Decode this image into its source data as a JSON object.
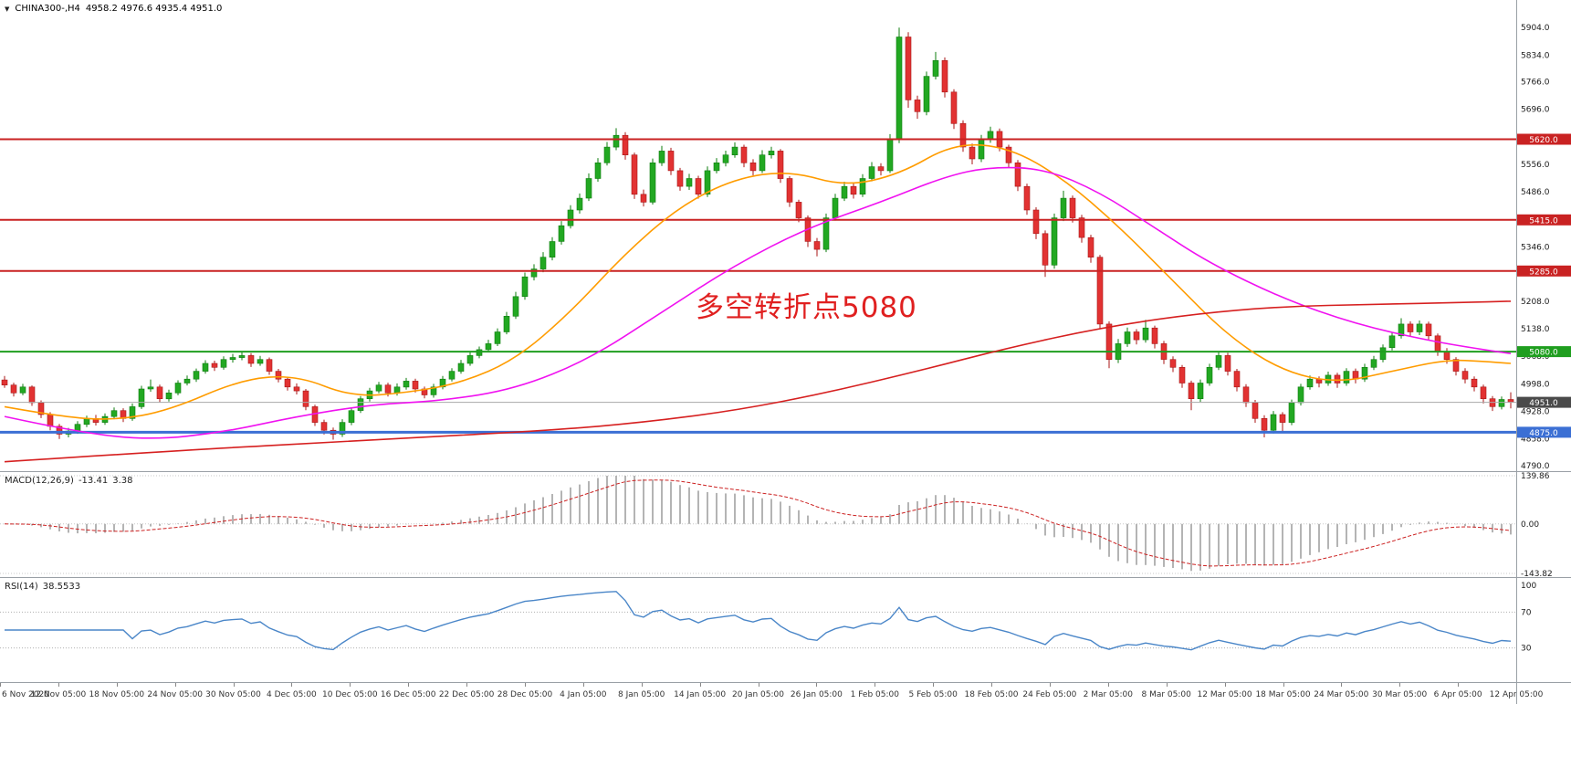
{
  "header": {
    "dropdown_icon": "▼",
    "symbol_period": "CHINA300-,H4",
    "ohlc": "4958.2 4976.6 4935.4 4951.0"
  },
  "annotation": {
    "text": "多空转折点5080",
    "color": "#e02020"
  },
  "price_axis": {
    "labels": [
      "5904.0",
      "5834.0",
      "5766.0",
      "5696.0",
      "5556.0",
      "5486.0",
      "5346.0",
      "5208.0",
      "5138.0",
      "5068.0",
      "4998.0",
      "4928.0",
      "4858.0",
      "4790.0"
    ],
    "badges": [
      {
        "label": "5620.0",
        "price": 5620.0,
        "color": "#c92222"
      },
      {
        "label": "5415.0",
        "price": 5415.0,
        "color": "#c92222"
      },
      {
        "label": "5285.0",
        "price": 5285.0,
        "color": "#c92222"
      },
      {
        "label": "5080.0",
        "price": 5080.0,
        "color": "#1f9e1f"
      },
      {
        "label": "4951.0",
        "price": 4951.0,
        "color": "#4a4a4a"
      },
      {
        "label": "4875.0",
        "price": 4875.0,
        "color": "#3b6fd4"
      }
    ]
  },
  "indicators": {
    "macd": {
      "label": "MACD(12,26,9)",
      "value_main": "-13.41",
      "value_signal": "3.38",
      "axis_labels": [
        "139.86",
        "0.00",
        "-143.82"
      ],
      "axis_max": 139.86,
      "axis_min": -143.82
    },
    "rsi": {
      "label": "RSI(14)",
      "value": "38.5533",
      "levels": [
        100,
        70,
        30
      ]
    }
  },
  "chart_data": {
    "type": "candlestick",
    "symbol": "CHINA300-",
    "timeframe": "H4",
    "title": "CHINA300-,H4",
    "ylim": [
      4776,
      5974
    ],
    "last_price": 4951.0,
    "x_labels": [
      "6 Nov 2020",
      "12 Nov 05:00",
      "18 Nov 05:00",
      "24 Nov 05:00",
      "30 Nov 05:00",
      "4 Dec 05:00",
      "10 Dec 05:00",
      "16 Dec 05:00",
      "22 Dec 05:00",
      "28 Dec 05:00",
      "4 Jan 05:00",
      "8 Jan 05:00",
      "14 Jan 05:00",
      "20 Jan 05:00",
      "26 Jan 05:00",
      "1 Feb 05:00",
      "5 Feb 05:00",
      "18 Feb 05:00",
      "24 Feb 05:00",
      "2 Mar 05:00",
      "8 Mar 05:00",
      "12 Mar 05:00",
      "18 Mar 05:00",
      "24 Mar 05:00",
      "30 Mar 05:00",
      "6 Apr 05:00",
      "12 Apr 05:00"
    ],
    "h_lines": [
      {
        "name": "resistance-5620",
        "price": 5620,
        "color": "#c92222",
        "width": 2
      },
      {
        "name": "resistance-5415",
        "price": 5415,
        "color": "#c92222",
        "width": 2
      },
      {
        "name": "resistance-5285",
        "price": 5285,
        "color": "#c92222",
        "width": 2
      },
      {
        "name": "pivot-5080",
        "price": 5080,
        "color": "#1f9e1f",
        "width": 2
      },
      {
        "name": "support-4875",
        "price": 4875,
        "color": "#3b6fd4",
        "width": 3
      },
      {
        "name": "current-price-4951",
        "price": 4951,
        "color": "#aaaaaa",
        "width": 1
      }
    ],
    "colors": {
      "up": "#22a822",
      "up_border": "#0e7c0e",
      "down": "#e23232",
      "down_border": "#a81616",
      "macd_hist": "#b4b4b4",
      "macd_signal": "#cc2222",
      "rsi": "#4a86c8"
    },
    "moving_averages": [
      {
        "name": "ma-fast-line",
        "color": "#ff9c00",
        "points": [
          [
            0,
            4940
          ],
          [
            6,
            4915
          ],
          [
            12,
            4905
          ],
          [
            18,
            4930
          ],
          [
            26,
            5010
          ],
          [
            32,
            5020
          ],
          [
            38,
            4965
          ],
          [
            44,
            4975
          ],
          [
            50,
            5000
          ],
          [
            56,
            5060
          ],
          [
            62,
            5180
          ],
          [
            68,
            5330
          ],
          [
            74,
            5450
          ],
          [
            80,
            5520
          ],
          [
            86,
            5540
          ],
          [
            92,
            5500
          ],
          [
            98,
            5530
          ],
          [
            104,
            5610
          ],
          [
            110,
            5600
          ],
          [
            116,
            5520
          ],
          [
            122,
            5400
          ],
          [
            128,
            5260
          ],
          [
            134,
            5120
          ],
          [
            140,
            5030
          ],
          [
            146,
            5000
          ],
          [
            152,
            5030
          ],
          [
            158,
            5060
          ],
          [
            162,
            5055
          ],
          [
            165,
            5050
          ]
        ]
      },
      {
        "name": "ma-mid-line",
        "color": "#f012f0",
        "points": [
          [
            0,
            4915
          ],
          [
            8,
            4875
          ],
          [
            16,
            4855
          ],
          [
            24,
            4875
          ],
          [
            32,
            4915
          ],
          [
            40,
            4945
          ],
          [
            48,
            4955
          ],
          [
            56,
            4985
          ],
          [
            64,
            5060
          ],
          [
            72,
            5180
          ],
          [
            80,
            5300
          ],
          [
            88,
            5395
          ],
          [
            96,
            5460
          ],
          [
            103,
            5525
          ],
          [
            108,
            5550
          ],
          [
            114,
            5545
          ],
          [
            120,
            5485
          ],
          [
            126,
            5395
          ],
          [
            132,
            5305
          ],
          [
            140,
            5215
          ],
          [
            148,
            5150
          ],
          [
            156,
            5108
          ],
          [
            162,
            5085
          ],
          [
            165,
            5075
          ]
        ]
      },
      {
        "name": "ma-slow-line",
        "color": "#d62020",
        "points": [
          [
            0,
            4800
          ],
          [
            20,
            4830
          ],
          [
            40,
            4855
          ],
          [
            60,
            4880
          ],
          [
            70,
            4900
          ],
          [
            80,
            4930
          ],
          [
            90,
            4975
          ],
          [
            100,
            5030
          ],
          [
            110,
            5090
          ],
          [
            120,
            5140
          ],
          [
            130,
            5175
          ],
          [
            140,
            5195
          ],
          [
            150,
            5200
          ],
          [
            160,
            5205
          ],
          [
            165,
            5208
          ]
        ]
      }
    ],
    "candles": [
      [
        5008,
        5018,
        4988,
        4995
      ],
      [
        4995,
        5001,
        4966,
        4975
      ],
      [
        4975,
        4998,
        4969,
        4990
      ],
      [
        4990,
        4994,
        4942,
        4950
      ],
      [
        4950,
        4956,
        4911,
        4920
      ],
      [
        4920,
        4926,
        4880,
        4890
      ],
      [
        4890,
        4896,
        4858,
        4870
      ],
      [
        4870,
        4886,
        4862,
        4878
      ],
      [
        4878,
        4903,
        4871,
        4895
      ],
      [
        4895,
        4917,
        4888,
        4910
      ],
      [
        4910,
        4919,
        4892,
        4900
      ],
      [
        4900,
        4923,
        4894,
        4915
      ],
      [
        4915,
        4938,
        4908,
        4930
      ],
      [
        4930,
        4936,
        4901,
        4910
      ],
      [
        4910,
        4948,
        4904,
        4940
      ],
      [
        4940,
        4993,
        4934,
        4985
      ],
      [
        4985,
        5009,
        4978,
        4990
      ],
      [
        4990,
        4996,
        4951,
        4960
      ],
      [
        4960,
        4983,
        4953,
        4975
      ],
      [
        4975,
        5007,
        4969,
        5000
      ],
      [
        5000,
        5019,
        4994,
        5010
      ],
      [
        5010,
        5037,
        5003,
        5030
      ],
      [
        5030,
        5058,
        5024,
        5050
      ],
      [
        5050,
        5057,
        5031,
        5040
      ],
      [
        5040,
        5068,
        5034,
        5060
      ],
      [
        5060,
        5074,
        5052,
        5065
      ],
      [
        5065,
        5078,
        5058,
        5070
      ],
      [
        5070,
        5076,
        5041,
        5050
      ],
      [
        5050,
        5069,
        5044,
        5060
      ],
      [
        5060,
        5065,
        5021,
        5030
      ],
      [
        5030,
        5036,
        5002,
        5010
      ],
      [
        5010,
        5016,
        4981,
        4990
      ],
      [
        4990,
        4999,
        4971,
        4980
      ],
      [
        4980,
        4985,
        4931,
        4940
      ],
      [
        4940,
        4945,
        4891,
        4900
      ],
      [
        4900,
        4907,
        4869,
        4880
      ],
      [
        4880,
        4887,
        4856,
        4870
      ],
      [
        4870,
        4908,
        4863,
        4900
      ],
      [
        4900,
        4938,
        4893,
        4930
      ],
      [
        4930,
        4967,
        4924,
        4960
      ],
      [
        4960,
        4988,
        4953,
        4980
      ],
      [
        4980,
        5003,
        4974,
        4995
      ],
      [
        4995,
        5001,
        4966,
        4975
      ],
      [
        4975,
        4999,
        4968,
        4990
      ],
      [
        4990,
        5013,
        4983,
        5005
      ],
      [
        5005,
        5011,
        4976,
        4985
      ],
      [
        4985,
        4991,
        4961,
        4970
      ],
      [
        4970,
        4998,
        4963,
        4990
      ],
      [
        4990,
        5018,
        4984,
        5010
      ],
      [
        5010,
        5038,
        5004,
        5030
      ],
      [
        5030,
        5059,
        5024,
        5050
      ],
      [
        5050,
        5078,
        5044,
        5070
      ],
      [
        5070,
        5093,
        5063,
        5085
      ],
      [
        5085,
        5110,
        5078,
        5100
      ],
      [
        5100,
        5139,
        5094,
        5130
      ],
      [
        5130,
        5181,
        5124,
        5170
      ],
      [
        5170,
        5232,
        5163,
        5220
      ],
      [
        5220,
        5281,
        5212,
        5270
      ],
      [
        5270,
        5302,
        5261,
        5290
      ],
      [
        5290,
        5333,
        5282,
        5320
      ],
      [
        5320,
        5371,
        5312,
        5360
      ],
      [
        5360,
        5412,
        5352,
        5400
      ],
      [
        5400,
        5452,
        5393,
        5440
      ],
      [
        5440,
        5482,
        5431,
        5470
      ],
      [
        5470,
        5533,
        5463,
        5520
      ],
      [
        5520,
        5572,
        5512,
        5560
      ],
      [
        5560,
        5613,
        5553,
        5600
      ],
      [
        5600,
        5648,
        5592,
        5630
      ],
      [
        5630,
        5638,
        5568,
        5580
      ],
      [
        5580,
        5586,
        5468,
        5480
      ],
      [
        5480,
        5492,
        5449,
        5460
      ],
      [
        5460,
        5571,
        5454,
        5560
      ],
      [
        5560,
        5603,
        5552,
        5590
      ],
      [
        5590,
        5598,
        5529,
        5540
      ],
      [
        5540,
        5547,
        5489,
        5500
      ],
      [
        5500,
        5532,
        5491,
        5520
      ],
      [
        5520,
        5527,
        5469,
        5480
      ],
      [
        5480,
        5551,
        5473,
        5540
      ],
      [
        5540,
        5572,
        5533,
        5560
      ],
      [
        5560,
        5591,
        5551,
        5580
      ],
      [
        5580,
        5612,
        5573,
        5600
      ],
      [
        5600,
        5606,
        5549,
        5560
      ],
      [
        5560,
        5569,
        5528,
        5540
      ],
      [
        5540,
        5592,
        5534,
        5580
      ],
      [
        5580,
        5601,
        5571,
        5590
      ],
      [
        5590,
        5595,
        5509,
        5520
      ],
      [
        5520,
        5526,
        5448,
        5460
      ],
      [
        5460,
        5466,
        5409,
        5420
      ],
      [
        5420,
        5426,
        5346,
        5360
      ],
      [
        5360,
        5369,
        5322,
        5340
      ],
      [
        5340,
        5431,
        5333,
        5420
      ],
      [
        5420,
        5481,
        5413,
        5470
      ],
      [
        5470,
        5512,
        5463,
        5500
      ],
      [
        5500,
        5508,
        5469,
        5480
      ],
      [
        5480,
        5531,
        5473,
        5520
      ],
      [
        5520,
        5562,
        5513,
        5550
      ],
      [
        5550,
        5559,
        5528,
        5540
      ],
      [
        5540,
        5633,
        5534,
        5620
      ],
      [
        5620,
        5904,
        5610,
        5880
      ],
      [
        5880,
        5892,
        5700,
        5720
      ],
      [
        5720,
        5731,
        5672,
        5690
      ],
      [
        5690,
        5792,
        5681,
        5780
      ],
      [
        5780,
        5842,
        5772,
        5820
      ],
      [
        5820,
        5828,
        5726,
        5740
      ],
      [
        5740,
        5747,
        5646,
        5660
      ],
      [
        5660,
        5668,
        5588,
        5600
      ],
      [
        5600,
        5609,
        5556,
        5570
      ],
      [
        5570,
        5631,
        5562,
        5620
      ],
      [
        5620,
        5652,
        5611,
        5640
      ],
      [
        5640,
        5647,
        5589,
        5600
      ],
      [
        5600,
        5606,
        5548,
        5560
      ],
      [
        5560,
        5567,
        5488,
        5500
      ],
      [
        5500,
        5507,
        5428,
        5440
      ],
      [
        5440,
        5447,
        5366,
        5380
      ],
      [
        5380,
        5388,
        5270,
        5300
      ],
      [
        5300,
        5431,
        5291,
        5420
      ],
      [
        5420,
        5489,
        5412,
        5470
      ],
      [
        5470,
        5477,
        5408,
        5420
      ],
      [
        5420,
        5428,
        5357,
        5370
      ],
      [
        5370,
        5377,
        5306,
        5320
      ],
      [
        5320,
        5326,
        5138,
        5150
      ],
      [
        5150,
        5157,
        5038,
        5060
      ],
      [
        5060,
        5112,
        5051,
        5100
      ],
      [
        5100,
        5141,
        5092,
        5130
      ],
      [
        5130,
        5137,
        5098,
        5110
      ],
      [
        5110,
        5161,
        5103,
        5140
      ],
      [
        5140,
        5146,
        5088,
        5100
      ],
      [
        5100,
        5107,
        5048,
        5060
      ],
      [
        5060,
        5068,
        5028,
        5040
      ],
      [
        5040,
        5046,
        4988,
        5000
      ],
      [
        5000,
        5006,
        4931,
        4960
      ],
      [
        4960,
        5009,
        4952,
        5000
      ],
      [
        5000,
        5049,
        4993,
        5040
      ],
      [
        5040,
        5081,
        5033,
        5070
      ],
      [
        5070,
        5077,
        5019,
        5030
      ],
      [
        5030,
        5036,
        4979,
        4990
      ],
      [
        4990,
        4997,
        4939,
        4950
      ],
      [
        4950,
        4957,
        4899,
        4910
      ],
      [
        4910,
        4918,
        4862,
        4880
      ],
      [
        4880,
        4929,
        4872,
        4920
      ],
      [
        4920,
        4926,
        4878,
        4900
      ],
      [
        4900,
        4958,
        4893,
        4950
      ],
      [
        4950,
        4998,
        4943,
        4990
      ],
      [
        4990,
        5019,
        4983,
        5010
      ],
      [
        5010,
        5017,
        4989,
        5000
      ],
      [
        5000,
        5029,
        4993,
        5020
      ],
      [
        5020,
        5026,
        4988,
        5000
      ],
      [
        5000,
        5038,
        4993,
        5030
      ],
      [
        5030,
        5037,
        4999,
        5010
      ],
      [
        5010,
        5049,
        5003,
        5040
      ],
      [
        5040,
        5069,
        5033,
        5060
      ],
      [
        5060,
        5098,
        5053,
        5090
      ],
      [
        5090,
        5129,
        5083,
        5120
      ],
      [
        5120,
        5165,
        5113,
        5150
      ],
      [
        5150,
        5157,
        5119,
        5130
      ],
      [
        5130,
        5159,
        5122,
        5150
      ],
      [
        5150,
        5156,
        5109,
        5120
      ],
      [
        5120,
        5126,
        5069,
        5080
      ],
      [
        5080,
        5089,
        5049,
        5060
      ],
      [
        5060,
        5066,
        5019,
        5030
      ],
      [
        5030,
        5038,
        4999,
        5010
      ],
      [
        5010,
        5017,
        4979,
        4990
      ],
      [
        4990,
        4996,
        4948,
        4960
      ],
      [
        4960,
        4967,
        4929,
        4940
      ],
      [
        4940,
        4966,
        4933,
        4958.2
      ],
      [
        4958.2,
        4976.6,
        4935.4,
        4951.0
      ]
    ]
  }
}
